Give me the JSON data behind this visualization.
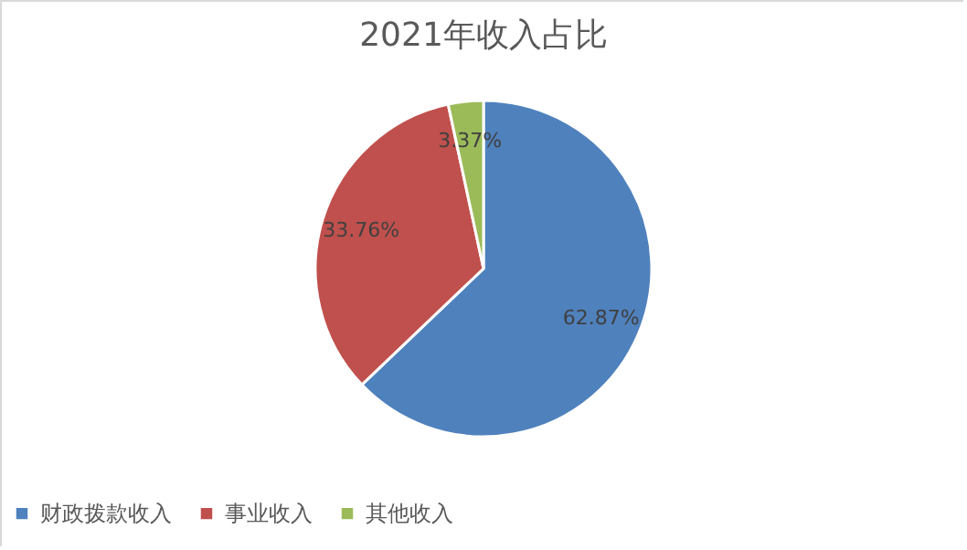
{
  "chart_data": {
    "type": "pie",
    "title": "2021年收入占比",
    "categories": [
      "财政拨款收入",
      "事业收入",
      "其他收入"
    ],
    "values": [
      62.87,
      33.76,
      3.37
    ],
    "colors": [
      "#4f81bd",
      "#c0504d",
      "#9bbb59"
    ],
    "value_labels": [
      "62.87%",
      "33.76%",
      "3.37%"
    ],
    "legend": "bottom"
  }
}
